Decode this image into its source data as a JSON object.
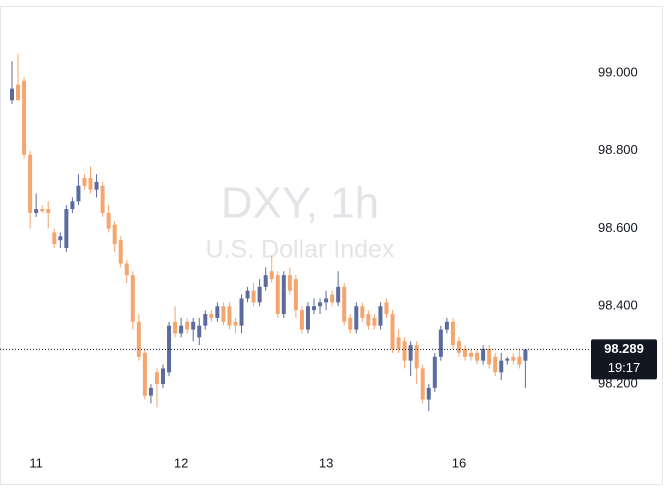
{
  "chart_data": {
    "type": "candlestick",
    "title": "DXY, 1h",
    "subtitle": "U.S. Dollar Index",
    "categories": [
      null,
      null,
      null,
      null,
      "11",
      null,
      null,
      null,
      null,
      null,
      null,
      null,
      null,
      null,
      null,
      null,
      null,
      null,
      null,
      null,
      null,
      null,
      null,
      null,
      null,
      null,
      null,
      null,
      "12",
      null,
      null,
      null,
      null,
      null,
      null,
      null,
      null,
      null,
      null,
      null,
      null,
      null,
      null,
      null,
      null,
      null,
      null,
      null,
      null,
      null,
      null,
      null,
      "13",
      null,
      null,
      null,
      null,
      null,
      null,
      null,
      null,
      null,
      null,
      null,
      null,
      null,
      null,
      null,
      null,
      null,
      null,
      null,
      null,
      null,
      "16",
      null,
      null,
      null,
      null,
      null,
      null,
      null,
      null,
      null,
      null,
      null
    ],
    "open": [
      98.93,
      98.97,
      98.98,
      98.79,
      98.64,
      98.65,
      98.65,
      98.59,
      98.57,
      98.55,
      98.65,
      98.67,
      98.73,
      98.73,
      98.7,
      98.71,
      98.64,
      98.61,
      98.57,
      98.51,
      98.48,
      98.36,
      98.28,
      98.17,
      98.23,
      98.2,
      98.23,
      98.36,
      98.33,
      98.36,
      98.34,
      98.32,
      98.35,
      98.38,
      98.37,
      98.4,
      98.4,
      98.36,
      98.35,
      98.42,
      98.44,
      98.41,
      98.45,
      98.49,
      98.48,
      98.38,
      98.48,
      98.47,
      98.39,
      98.34,
      98.39,
      98.4,
      98.41,
      98.43,
      98.41,
      98.45,
      98.37,
      98.34,
      98.4,
      98.38,
      98.37,
      98.35,
      98.41,
      98.38,
      98.32,
      98.31,
      98.26,
      98.3,
      98.24,
      98.16,
      98.19,
      98.27,
      98.34,
      98.36,
      98.31,
      98.29,
      98.28,
      98.28,
      98.26,
      98.29,
      98.27,
      98.23,
      98.26,
      98.27,
      98.27,
      98.26
    ],
    "high": [
      99.03,
      99.05,
      98.99,
      98.8,
      98.69,
      98.66,
      98.67,
      98.6,
      98.59,
      98.66,
      98.68,
      98.74,
      98.74,
      98.76,
      98.74,
      98.72,
      98.66,
      98.62,
      98.58,
      98.52,
      98.49,
      98.38,
      98.29,
      98.2,
      98.24,
      98.25,
      98.36,
      98.4,
      98.37,
      98.37,
      98.37,
      98.37,
      98.39,
      98.39,
      98.41,
      98.41,
      98.41,
      98.37,
      98.43,
      98.45,
      98.46,
      98.47,
      98.5,
      98.53,
      98.49,
      98.49,
      98.5,
      98.48,
      98.4,
      98.41,
      98.42,
      98.42,
      98.44,
      98.44,
      98.49,
      98.46,
      98.38,
      98.41,
      98.41,
      98.39,
      98.38,
      98.41,
      98.42,
      98.39,
      98.34,
      98.32,
      98.31,
      98.31,
      98.25,
      98.2,
      98.28,
      98.35,
      98.37,
      98.37,
      98.32,
      98.3,
      98.29,
      98.29,
      98.3,
      98.3,
      98.28,
      98.28,
      98.27,
      98.28,
      98.29,
      98.29
    ],
    "low": [
      98.92,
      98.93,
      98.78,
      98.6,
      98.63,
      98.64,
      98.6,
      98.55,
      98.55,
      98.54,
      98.64,
      98.66,
      98.7,
      98.69,
      98.68,
      98.63,
      98.59,
      98.54,
      98.5,
      98.46,
      98.34,
      98.26,
      98.16,
      98.15,
      98.14,
      98.19,
      98.22,
      98.32,
      98.32,
      98.33,
      98.31,
      98.3,
      98.34,
      98.36,
      98.36,
      98.35,
      98.34,
      98.33,
      98.33,
      98.41,
      98.4,
      98.4,
      98.44,
      98.46,
      98.37,
      98.37,
      98.43,
      98.37,
      98.33,
      98.33,
      98.38,
      98.38,
      98.39,
      98.4,
      98.4,
      98.35,
      98.33,
      98.33,
      98.36,
      98.34,
      98.34,
      98.34,
      98.37,
      98.28,
      98.28,
      98.24,
      98.22,
      98.2,
      98.15,
      98.13,
      98.18,
      98.26,
      98.33,
      98.29,
      98.27,
      98.26,
      98.26,
      98.25,
      98.25,
      98.24,
      98.22,
      98.21,
      98.25,
      98.25,
      98.24,
      98.19
    ],
    "close": [
      98.96,
      98.93,
      98.79,
      98.64,
      98.65,
      98.645,
      98.64,
      98.56,
      98.58,
      98.65,
      98.67,
      98.71,
      98.71,
      98.7,
      98.72,
      98.64,
      98.6,
      98.56,
      98.51,
      98.48,
      98.36,
      98.27,
      98.17,
      98.19,
      98.2,
      98.24,
      98.35,
      98.33,
      98.35,
      98.34,
      98.36,
      98.35,
      98.38,
      98.37,
      98.4,
      98.36,
      98.35,
      98.35,
      98.42,
      98.44,
      98.41,
      98.45,
      98.48,
      98.47,
      98.38,
      98.48,
      98.44,
      98.39,
      98.34,
      98.4,
      98.4,
      98.41,
      98.42,
      98.41,
      98.45,
      98.36,
      98.34,
      98.4,
      98.37,
      98.35,
      98.35,
      98.4,
      98.38,
      98.29,
      98.29,
      98.26,
      98.3,
      98.24,
      98.16,
      98.19,
      98.27,
      98.34,
      98.36,
      98.3,
      98.28,
      98.27,
      98.27,
      98.26,
      98.29,
      98.25,
      98.23,
      98.26,
      98.265,
      98.26,
      98.25,
      98.289
    ],
    "up_color": "#5b6b9e",
    "down_color": "#f5a56e",
    "ylim": [
      98.043,
      99.188
    ],
    "yticks": [
      {
        "value": 98.2,
        "label": "98.200"
      },
      {
        "value": 98.4,
        "label": "98.400"
      },
      {
        "value": 98.6,
        "label": "98.600"
      },
      {
        "value": 98.8,
        "label": "98.800"
      },
      {
        "value": 99.0,
        "label": "99.000"
      }
    ],
    "last_price": 98.289,
    "countdown": "19:17"
  }
}
